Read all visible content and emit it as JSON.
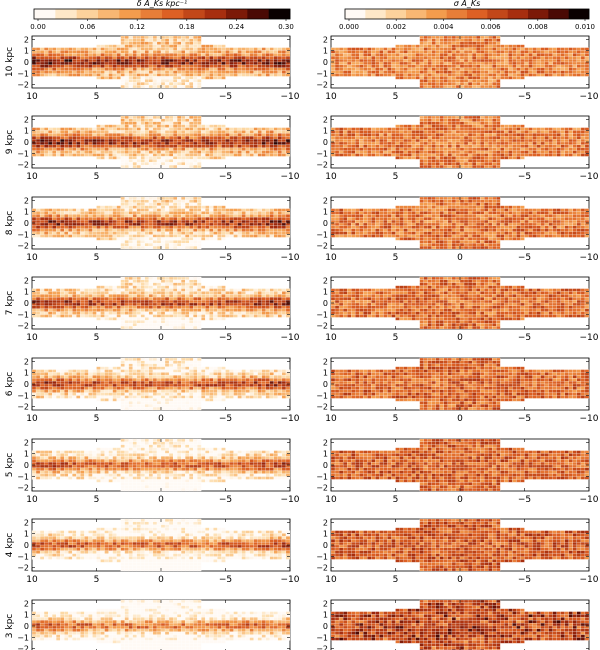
{
  "chart_data": [
    {
      "type": "heatmap",
      "title": "",
      "colorbar": {
        "label": "δ A_Ks kpc⁻¹",
        "ticks": [
          "0.00",
          "0.06",
          "0.12",
          "0.18",
          "0.24",
          "0.30"
        ],
        "range": [
          0.0,
          0.3
        ]
      },
      "panels": [
        {
          "ylabel": "10 kpc"
        },
        {
          "ylabel": "9 kpc"
        },
        {
          "ylabel": "8 kpc"
        },
        {
          "ylabel": "7 kpc"
        },
        {
          "ylabel": "6 kpc"
        },
        {
          "ylabel": "5 kpc"
        },
        {
          "ylabel": "4 kpc"
        },
        {
          "ylabel": "3 kpc"
        }
      ],
      "x_ticks": [
        "10",
        "5",
        "0",
        "−5",
        "−10"
      ],
      "xlim": [
        10,
        -10
      ],
      "y_ticks": [
        "2",
        "1",
        "0",
        "−1",
        "−2"
      ],
      "ylim": [
        -2.3,
        2.3
      ]
    },
    {
      "type": "heatmap",
      "title": "",
      "colorbar": {
        "label": "σ A_Ks",
        "ticks": [
          "0.000",
          "0.002",
          "0.004",
          "0.006",
          "0.008",
          "0.010"
        ],
        "range": [
          0.0,
          0.01
        ]
      },
      "panels": [
        {
          "ylabel": ""
        },
        {
          "ylabel": ""
        },
        {
          "ylabel": ""
        },
        {
          "ylabel": ""
        },
        {
          "ylabel": ""
        },
        {
          "ylabel": ""
        },
        {
          "ylabel": ""
        },
        {
          "ylabel": ""
        }
      ],
      "x_ticks": [
        "10",
        "5",
        "0",
        "−5",
        "−10"
      ],
      "xlim": [
        10,
        -10
      ],
      "y_ticks": [
        "2",
        "1",
        "0",
        "−1",
        "−2"
      ],
      "ylim": [
        -2.3,
        2.3
      ]
    }
  ],
  "colors": {
    "map_low": "#fff3e6",
    "map_mid": "#e8741f",
    "map_high": "#8a1e08",
    "map_peak": "#1a0201",
    "grid_line": "#ffffff"
  }
}
